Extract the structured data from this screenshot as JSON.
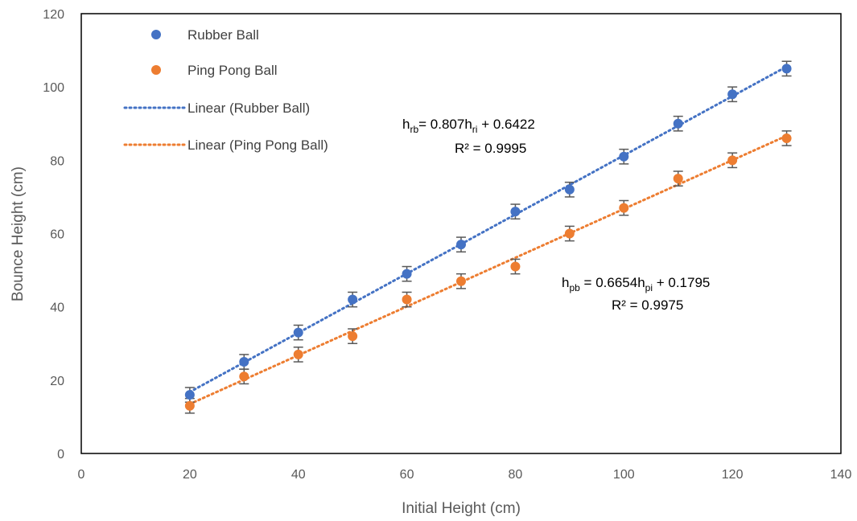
{
  "chart_data": {
    "type": "scatter",
    "xlabel": "Initial Height (cm)",
    "ylabel": "Bounce Height (cm)",
    "xlim": [
      0,
      140
    ],
    "ylim": [
      0,
      120
    ],
    "xticks": [
      0,
      20,
      40,
      60,
      80,
      100,
      120,
      140
    ],
    "yticks": [
      0,
      20,
      40,
      60,
      80,
      100,
      120
    ],
    "grid": false,
    "legend_position": "top-left",
    "error_bar": 2,
    "series": [
      {
        "name": "Rubber Ball",
        "color": "#4472C4",
        "x": [
          20,
          30,
          40,
          50,
          60,
          70,
          80,
          90,
          100,
          110,
          120,
          130
        ],
        "y": [
          16,
          25,
          33,
          42,
          49,
          57,
          66,
          72,
          81,
          90,
          98,
          105
        ]
      },
      {
        "name": "Ping Pong Ball",
        "color": "#ED7D31",
        "x": [
          20,
          30,
          40,
          50,
          60,
          70,
          80,
          90,
          100,
          110,
          120,
          130
        ],
        "y": [
          13,
          21,
          27,
          32,
          42,
          47,
          51,
          60,
          67,
          75,
          80,
          86
        ]
      }
    ],
    "trendlines": [
      {
        "name": "Linear (Rubber Ball)",
        "color": "#4472C4",
        "slope": 0.807,
        "intercept": 0.6422,
        "x_range": [
          20,
          130
        ],
        "equation": {
          "y_base": "h",
          "y_sub": "rb",
          "mid": "= 0.807h",
          "x_sub": "ri",
          "tail": " + 0.6422",
          "r2": "R² = 0.9995"
        }
      },
      {
        "name": "Linear (Ping Pong Ball)",
        "color": "#ED7D31",
        "slope": 0.6654,
        "intercept": 0.1795,
        "x_range": [
          20,
          130
        ],
        "equation": {
          "y_base": "h",
          "y_sub": "pb",
          "mid": " = 0.6654h",
          "x_sub": "pi",
          "tail": " + 0.1795",
          "r2": "R² = 0.9975"
        }
      }
    ]
  }
}
